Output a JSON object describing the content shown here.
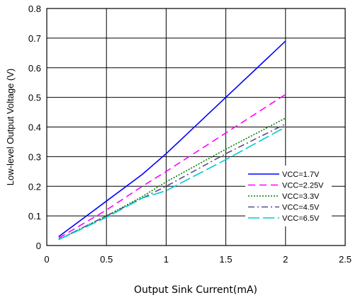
{
  "chart_data": {
    "type": "line",
    "title": "",
    "xlabel": "Output Sink Current(mA)",
    "ylabel": "Low-level Output Voltage (V)",
    "xlim": [
      0,
      2.5
    ],
    "ylim": [
      0,
      0.8
    ],
    "xticks": [
      "0",
      "0.5",
      "1",
      "1.5",
      "2",
      "2.5"
    ],
    "yticks": [
      "0",
      "0.1",
      "0.2",
      "0.3",
      "0.4",
      "0.5",
      "0.6",
      "0.7",
      "0.8"
    ],
    "grid": true,
    "legend_position": "lower-right",
    "series": [
      {
        "name": "VCC=1.7V",
        "color": "#0000ff",
        "dash": "solid",
        "x": [
          0.1,
          0.5,
          0.8,
          1.0,
          1.5,
          2.0
        ],
        "y": [
          0.03,
          0.15,
          0.24,
          0.31,
          0.5,
          0.69
        ]
      },
      {
        "name": "VCC=2.25V",
        "color": "#ff00ff",
        "dash": "dash",
        "x": [
          0.1,
          0.5,
          0.8,
          1.0,
          1.5,
          2.0
        ],
        "y": [
          0.025,
          0.12,
          0.2,
          0.25,
          0.38,
          0.51
        ]
      },
      {
        "name": "VCC=3.3V",
        "color": "#008000",
        "dash": "dot",
        "x": [
          0.1,
          0.5,
          0.8,
          1.0,
          1.5,
          2.0
        ],
        "y": [
          0.02,
          0.1,
          0.165,
          0.215,
          0.325,
          0.43
        ]
      },
      {
        "name": "VCC=4.5V",
        "color": "#5b4a8c",
        "dash": "dashdot",
        "x": [
          0.1,
          0.5,
          0.8,
          1.0,
          1.5,
          2.0
        ],
        "y": [
          0.02,
          0.1,
          0.16,
          0.2,
          0.31,
          0.41
        ]
      },
      {
        "name": "VCC=6.5V",
        "color": "#00cccc",
        "dash": "longdash",
        "x": [
          0.1,
          0.5,
          0.8,
          1.0,
          1.5,
          2.0
        ],
        "y": [
          0.02,
          0.095,
          0.16,
          0.185,
          0.29,
          0.4
        ]
      }
    ]
  }
}
